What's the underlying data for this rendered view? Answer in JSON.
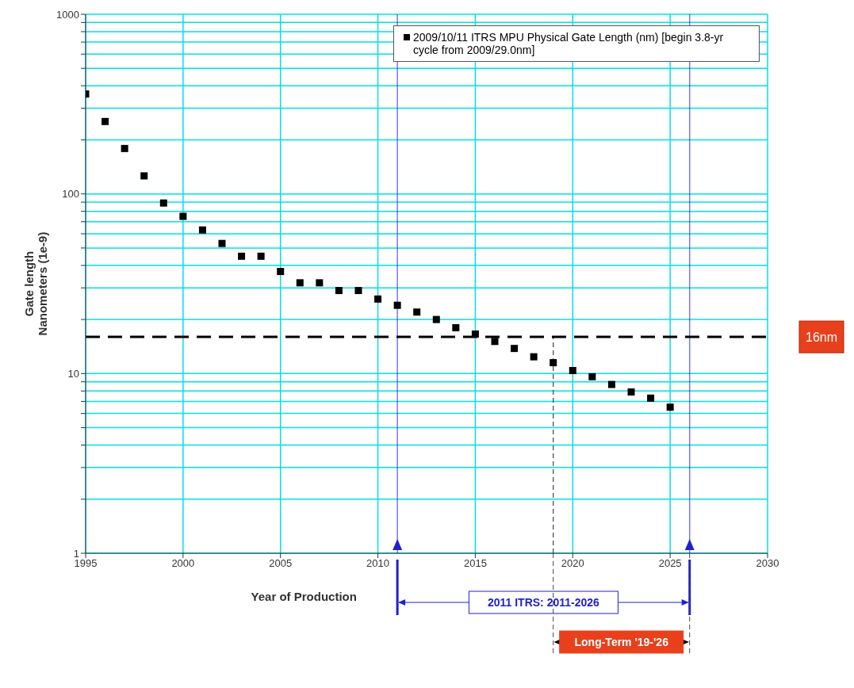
{
  "chart_data": {
    "type": "scatter",
    "xlabel": "Year of Production",
    "ylabel": "Gate length\nNanometers (1e-9)",
    "x": [
      1995,
      1996,
      1997,
      1998,
      1999,
      2000,
      2001,
      2002,
      2003,
      2004,
      2005,
      2006,
      2007,
      2008,
      2009,
      2010,
      2011,
      2012,
      2013,
      2014,
      2015,
      2016,
      2017,
      2018,
      2019,
      2020,
      2021,
      2022,
      2023,
      2024,
      2025
    ],
    "series": [
      {
        "name": "2009/10/11 ITRS MPU Physical Gate Length (nm) [begin 3.8-yr cycle from 2009/29.0nm]",
        "color": "#000000",
        "values": [
          360,
          253,
          179,
          126,
          89,
          75,
          63,
          53,
          45,
          45,
          37,
          32,
          32,
          29,
          29,
          26,
          24,
          22,
          20,
          18,
          16.6,
          15.1,
          13.8,
          12.4,
          11.5,
          10.4,
          9.6,
          8.7,
          7.9,
          7.3,
          6.5
        ]
      }
    ],
    "xlim": [
      1995,
      2030
    ],
    "xticks": [
      1995,
      2000,
      2005,
      2010,
      2015,
      2020,
      2025,
      2030
    ],
    "ylim": [
      1,
      1000
    ],
    "log": "y",
    "yticks": [
      1,
      {
        "value": 2,
        "label": null
      },
      {
        "value": 3,
        "label": null
      },
      {
        "value": 4,
        "label": null
      },
      {
        "value": 5,
        "label": null
      },
      {
        "value": 6,
        "label": null
      },
      {
        "value": 7,
        "label": null
      },
      {
        "value": 8,
        "label": null
      },
      {
        "value": 9,
        "label": null
      },
      10,
      {
        "value": 20,
        "label": null
      },
      {
        "value": 30,
        "label": null
      },
      {
        "value": 40,
        "label": null
      },
      {
        "value": 50,
        "label": null
      },
      {
        "value": 60,
        "label": null
      },
      {
        "value": 70,
        "label": null
      },
      {
        "value": 80,
        "label": null
      },
      {
        "value": 90,
        "label": null
      },
      100,
      {
        "value": 200,
        "label": null
      },
      {
        "value": 300,
        "label": null
      },
      {
        "value": 400,
        "label": null
      },
      {
        "value": 500,
        "label": null
      },
      {
        "value": 600,
        "label": null
      },
      {
        "value": 700,
        "label": null
      },
      {
        "value": 800,
        "label": null
      },
      {
        "value": 900,
        "label": null
      },
      1000
    ],
    "grid": true,
    "marker": "square",
    "legend": "top right",
    "ref_lines": [
      {
        "axis": "y",
        "value": 16,
        "label": "16nm",
        "color": "#000000",
        "line_style": "dashed"
      },
      {
        "axis": "x",
        "value": 2011,
        "color": "#2020d0",
        "line_style": "solid"
      },
      {
        "axis": "x",
        "value": 2026,
        "color": "#2020d0",
        "line_style": "solid"
      },
      {
        "axis": "x",
        "value": 2019,
        "color": "#444444",
        "line_style": "dashed"
      }
    ],
    "annotations": [
      "2011 ITRS:  2011-2026",
      "Long-Term '19-'26"
    ]
  }
}
